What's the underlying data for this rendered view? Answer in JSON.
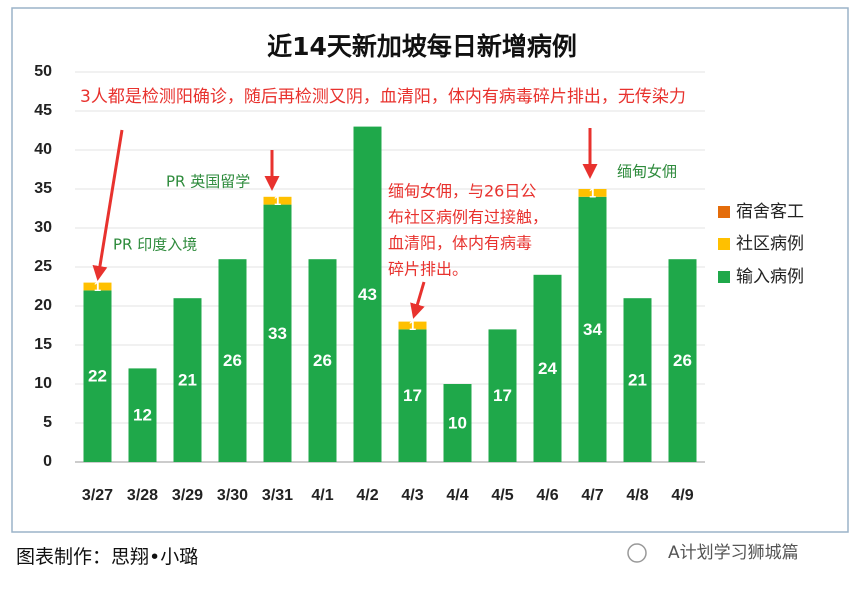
{
  "chart_data": {
    "type": "stacked-bar",
    "title": "近14天新加坡每日新增病例",
    "categories": [
      "3/27",
      "3/28",
      "3/29",
      "3/30",
      "3/31",
      "4/1",
      "4/2",
      "4/3",
      "4/4",
      "4/5",
      "4/6",
      "4/7",
      "4/8",
      "4/9"
    ],
    "series": [
      {
        "name": "输入病例",
        "color": "#1fa84a",
        "values": [
          22,
          12,
          21,
          26,
          33,
          26,
          43,
          17,
          10,
          17,
          24,
          34,
          21,
          26
        ]
      },
      {
        "name": "社区病例",
        "color": "#ffc000",
        "values": [
          1,
          0,
          0,
          0,
          1,
          0,
          0,
          1,
          0,
          0,
          0,
          1,
          0,
          0
        ]
      },
      {
        "name": "宿舍客工",
        "color": "#e46c0a",
        "values": [
          0,
          0,
          0,
          0,
          0,
          0,
          0,
          0,
          0,
          0,
          0,
          0,
          0,
          0
        ]
      }
    ],
    "ylim": [
      0,
      50
    ],
    "yticks": [
      0,
      5,
      10,
      15,
      20,
      25,
      30,
      35,
      40,
      45,
      50
    ],
    "grid": true,
    "legend": "right",
    "annotations": [
      {
        "text": [
          "3人都是检测阳确诊，随后再检测又阴，血清阳，体内有病毒碎片排出，无传染力"
        ],
        "color": "#e8322e"
      },
      {
        "text": [
          "PR 英国留学"
        ],
        "color": "#2e8b3c"
      },
      {
        "text": [
          "PR 印度入境"
        ],
        "color": "#2e8b3c"
      },
      {
        "text": [
          "缅甸女佣，与26日公",
          "布社区病例有过接触，",
          "血清阳，体内有病毒",
          "碎片排出。"
        ],
        "color": "#e8322e"
      },
      {
        "text": [
          "缅甸女佣"
        ],
        "color": "#2e8b3c"
      }
    ]
  },
  "caption": "图表制作：思翔•小璐",
  "watermark": "A计划学习狮城篇"
}
